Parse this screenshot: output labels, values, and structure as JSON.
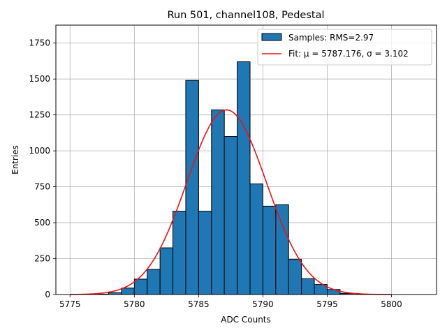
{
  "chart_data": {
    "type": "bar",
    "title": "Run 501, channel108, Pedestal",
    "xlabel": "ADC Counts",
    "ylabel": "Entries",
    "xlim": [
      5773.9,
      5803.5
    ],
    "ylim": [
      0,
      1875
    ],
    "xticks": [
      5775,
      5780,
      5785,
      5790,
      5795,
      5800
    ],
    "yticks": [
      0,
      250,
      500,
      750,
      1000,
      1250,
      1500,
      1750
    ],
    "grid": true,
    "legend_position": "top-right",
    "bin_width": 1,
    "bins": [
      {
        "left": 5777,
        "value": 3
      },
      {
        "left": 5778,
        "value": 12
      },
      {
        "left": 5779,
        "value": 45
      },
      {
        "left": 5780,
        "value": 107
      },
      {
        "left": 5781,
        "value": 175
      },
      {
        "left": 5782,
        "value": 325
      },
      {
        "left": 5783,
        "value": 580
      },
      {
        "left": 5784,
        "value": 1490
      },
      {
        "left": 5785,
        "value": 580
      },
      {
        "left": 5786,
        "value": 1285
      },
      {
        "left": 5787,
        "value": 1100
      },
      {
        "left": 5788,
        "value": 1620
      },
      {
        "left": 5789,
        "value": 770
      },
      {
        "left": 5790,
        "value": 615
      },
      {
        "left": 5791,
        "value": 625
      },
      {
        "left": 5792,
        "value": 245
      },
      {
        "left": 5793,
        "value": 110
      },
      {
        "left": 5794,
        "value": 70
      },
      {
        "left": 5795,
        "value": 35
      },
      {
        "left": 5796,
        "value": 8
      }
    ],
    "fit": {
      "mu": 5787.176,
      "sigma": 3.102,
      "peak": 1285,
      "x_range": [
        5775,
        5800
      ]
    },
    "series": [
      {
        "name": "Samples: RMS=2.97",
        "kind": "histogram",
        "color": "#1f77b4"
      },
      {
        "name": "Fit: μ = 5787.176, σ = 3.102",
        "kind": "line",
        "color": "#ee1111"
      }
    ]
  }
}
